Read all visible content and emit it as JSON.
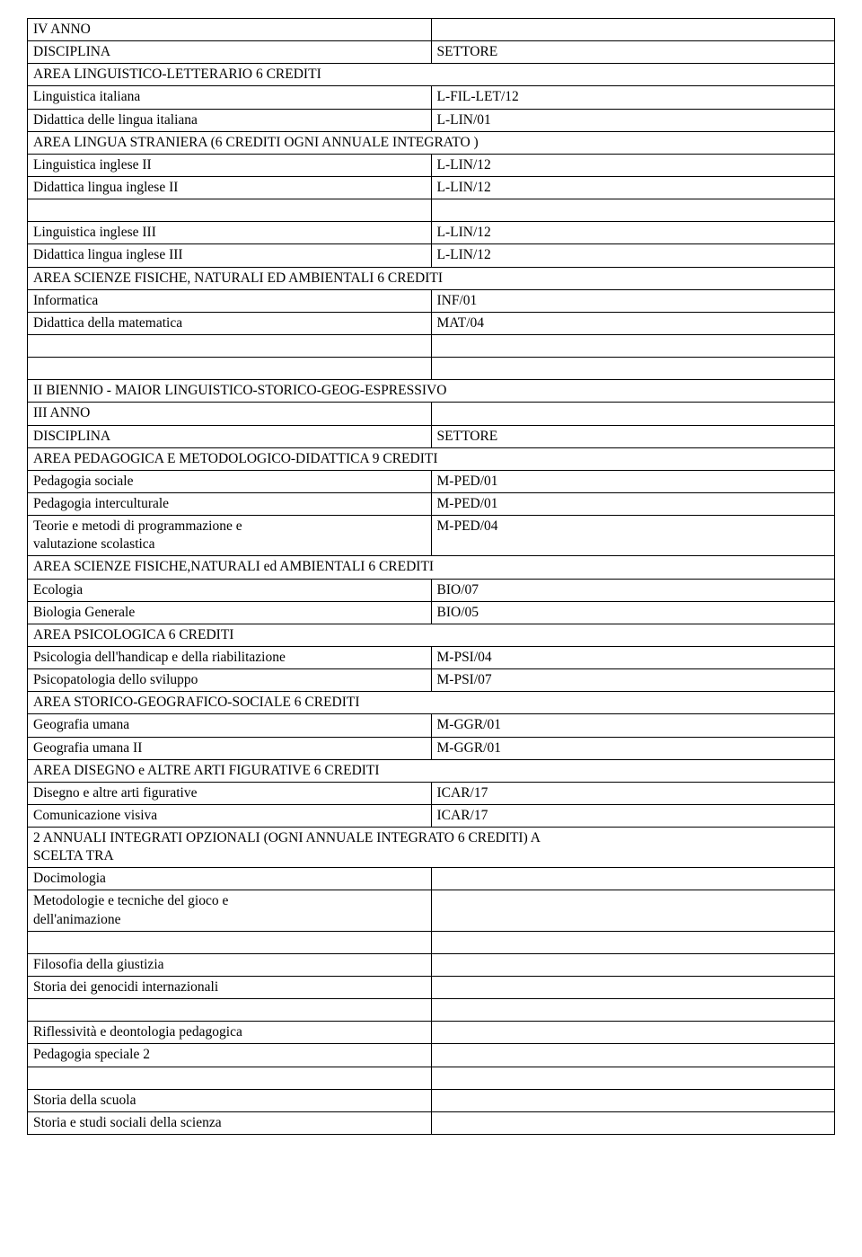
{
  "table": {
    "border_color": "#000000",
    "background_color": "#ffffff",
    "font_family": "Times New Roman",
    "font_size_pt": 12,
    "rows": [
      {
        "c1": "IV ANNO",
        "c2": "",
        "span": false
      },
      {
        "c1": "DISCIPLINA",
        "c2": "SETTORE",
        "span": false
      },
      {
        "c1": "AREA LINGUISTICO-LETTERARIO 6 CREDITI",
        "c2": "",
        "span": true
      },
      {
        "c1": "Linguistica italiana",
        "c2": "L-FIL-LET/12",
        "span": false
      },
      {
        "c1": "Didattica delle lingua italiana",
        "c2": "L-LIN/01",
        "span": false
      },
      {
        "c1": "AREA LINGUA STRANIERA (6 CREDITI OGNI ANNUALE INTEGRATO )",
        "c2": "",
        "span": true
      },
      {
        "c1": "Linguistica inglese II",
        "c2": "L-LIN/12",
        "span": false
      },
      {
        "c1": "Didattica lingua inglese II",
        "c2": "L-LIN/12",
        "span": false
      },
      {
        "c1": "",
        "c2": "",
        "span": false
      },
      {
        "c1": "Linguistica inglese III",
        "c2": "L-LIN/12",
        "span": false
      },
      {
        "c1": "Didattica lingua inglese III",
        "c2": "L-LIN/12",
        "span": false
      },
      {
        "c1": "AREA SCIENZE FISICHE, NATURALI ED AMBIENTALI 6 CREDITI",
        "c2": "",
        "span": true
      },
      {
        "c1": "Informatica",
        "c2": "INF/01",
        "span": false
      },
      {
        "c1": "Didattica della matematica",
        "c2": "MAT/04",
        "span": false
      },
      {
        "c1": "",
        "c2": "",
        "span": false
      },
      {
        "c1": "",
        "c2": "",
        "span": false
      },
      {
        "c1": "II BIENNIO - MAIOR LINGUISTICO-STORICO-GEOG-ESPRESSIVO",
        "c2": "",
        "span": true
      },
      {
        "c1": "III ANNO",
        "c2": "",
        "span": false
      },
      {
        "c1": "DISCIPLINA",
        "c2": "SETTORE",
        "span": false
      },
      {
        "c1": "AREA PEDAGOGICA E METODOLOGICO-DIDATTICA 9 CREDITI",
        "c2": "",
        "span": true
      },
      {
        "c1": "Pedagogia sociale",
        "c2": "M-PED/01",
        "span": false
      },
      {
        "c1": "Pedagogia interculturale",
        "c2": "M-PED/01",
        "span": false
      },
      {
        "c1": "Teorie e metodi di programmazione e\nvalutazione scolastica",
        "c2": "M-PED/04",
        "span": false
      },
      {
        "c1": "AREA SCIENZE FISICHE,NATURALI ed AMBIENTALI 6 CREDITI",
        "c2": "",
        "span": true
      },
      {
        "c1": "Ecologia",
        "c2": "BIO/07",
        "span": false
      },
      {
        "c1": "Biologia Generale",
        "c2": "BIO/05",
        "span": false
      },
      {
        "c1": "AREA PSICOLOGICA 6 CREDITI",
        "c2": "",
        "span": true
      },
      {
        "c1": "Psicologia dell'handicap e della riabilitazione",
        "c2": "M-PSI/04",
        "span": false
      },
      {
        "c1": "Psicopatologia dello sviluppo",
        "c2": "M-PSI/07",
        "span": false
      },
      {
        "c1": "AREA STORICO-GEOGRAFICO-SOCIALE 6 CREDITI",
        "c2": "",
        "span": true
      },
      {
        "c1": "Geografia umana",
        "c2": "M-GGR/01",
        "span": false
      },
      {
        "c1": "Geografia umana II",
        "c2": "M-GGR/01",
        "span": false
      },
      {
        "c1": "AREA DISEGNO e ALTRE ARTI FIGURATIVE 6 CREDITI",
        "c2": "",
        "span": true
      },
      {
        "c1": "Disegno e altre arti figurative",
        "c2": "ICAR/17",
        "span": false
      },
      {
        "c1": "Comunicazione visiva",
        "c2": "ICAR/17",
        "span": false
      },
      {
        "c1": "2 ANNUALI INTEGRATI OPZIONALI (OGNI ANNUALE INTEGRATO 6 CREDITI) A\nSCELTA TRA",
        "c2": "",
        "span": true
      },
      {
        "c1": "Docimologia",
        "c2": "",
        "span": false
      },
      {
        "c1": "Metodologie e tecniche del gioco e\ndell'animazione",
        "c2": "",
        "span": false
      },
      {
        "c1": "",
        "c2": "",
        "span": false
      },
      {
        "c1": "Filosofia della giustizia",
        "c2": "",
        "span": false
      },
      {
        "c1": "Storia dei genocidi internazionali",
        "c2": "",
        "span": false
      },
      {
        "c1": "",
        "c2": "",
        "span": false
      },
      {
        "c1": "Riflessività e deontologia pedagogica",
        "c2": "",
        "span": false
      },
      {
        "c1": "Pedagogia speciale 2",
        "c2": "",
        "span": false
      },
      {
        "c1": "",
        "c2": "",
        "span": false
      },
      {
        "c1": "Storia della scuola",
        "c2": "",
        "span": false
      },
      {
        "c1": "Storia e studi sociali della scienza",
        "c2": "",
        "span": false
      }
    ]
  }
}
